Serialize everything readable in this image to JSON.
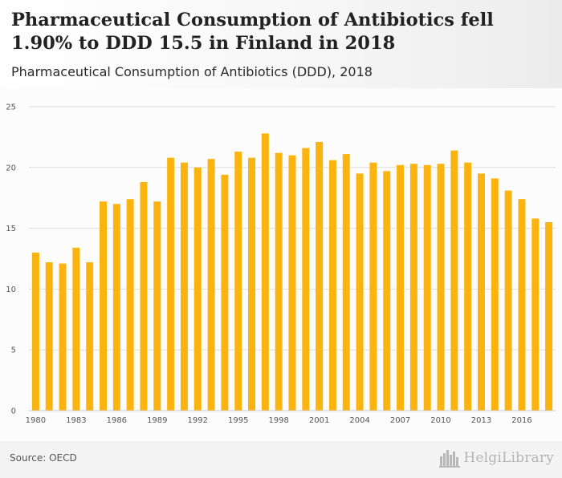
{
  "header": {
    "title": "Pharmaceutical Consumption of Antibiotics fell 1.90% to DDD 15.5 in Finland in 2018",
    "subtitle": "Pharmaceutical Consumption of Antibiotics (DDD), 2018"
  },
  "footer": {
    "source": "Source: OECD",
    "logo_text": "HelgiLibrary"
  },
  "colors": {
    "bar": "#fbb40f",
    "grid": "#dddddd",
    "axis_text": "#555555"
  },
  "chart_data": {
    "type": "bar",
    "categories": [
      "1980",
      "1981",
      "1982",
      "1983",
      "1984",
      "1985",
      "1986",
      "1987",
      "1988",
      "1989",
      "1990",
      "1991",
      "1992",
      "1993",
      "1994",
      "1995",
      "1996",
      "1997",
      "1998",
      "1999",
      "2000",
      "2001",
      "2002",
      "2003",
      "2004",
      "2005",
      "2006",
      "2007",
      "2008",
      "2009",
      "2010",
      "2011",
      "2012",
      "2013",
      "2014",
      "2015",
      "2016",
      "2017",
      "2018"
    ],
    "values": [
      13.0,
      12.2,
      12.1,
      13.4,
      12.2,
      17.2,
      17.0,
      17.4,
      18.8,
      17.2,
      20.8,
      20.4,
      20.0,
      20.7,
      19.4,
      21.3,
      20.8,
      22.8,
      21.2,
      21.0,
      21.6,
      22.1,
      20.6,
      21.1,
      19.5,
      20.4,
      19.7,
      20.2,
      20.3,
      20.2,
      20.3,
      21.4,
      20.4,
      19.5,
      19.1,
      18.1,
      17.4,
      15.8,
      15.5
    ],
    "x_tick_labels": [
      "1980",
      "1983",
      "1986",
      "1989",
      "1992",
      "1995",
      "1998",
      "2001",
      "2004",
      "2007",
      "2010",
      "2013",
      "2016"
    ],
    "y_ticks": [
      "0",
      "5",
      "10",
      "15",
      "20",
      "25"
    ],
    "ylim": [
      0,
      25
    ],
    "grid": true,
    "title": "",
    "xlabel": "",
    "ylabel": ""
  }
}
